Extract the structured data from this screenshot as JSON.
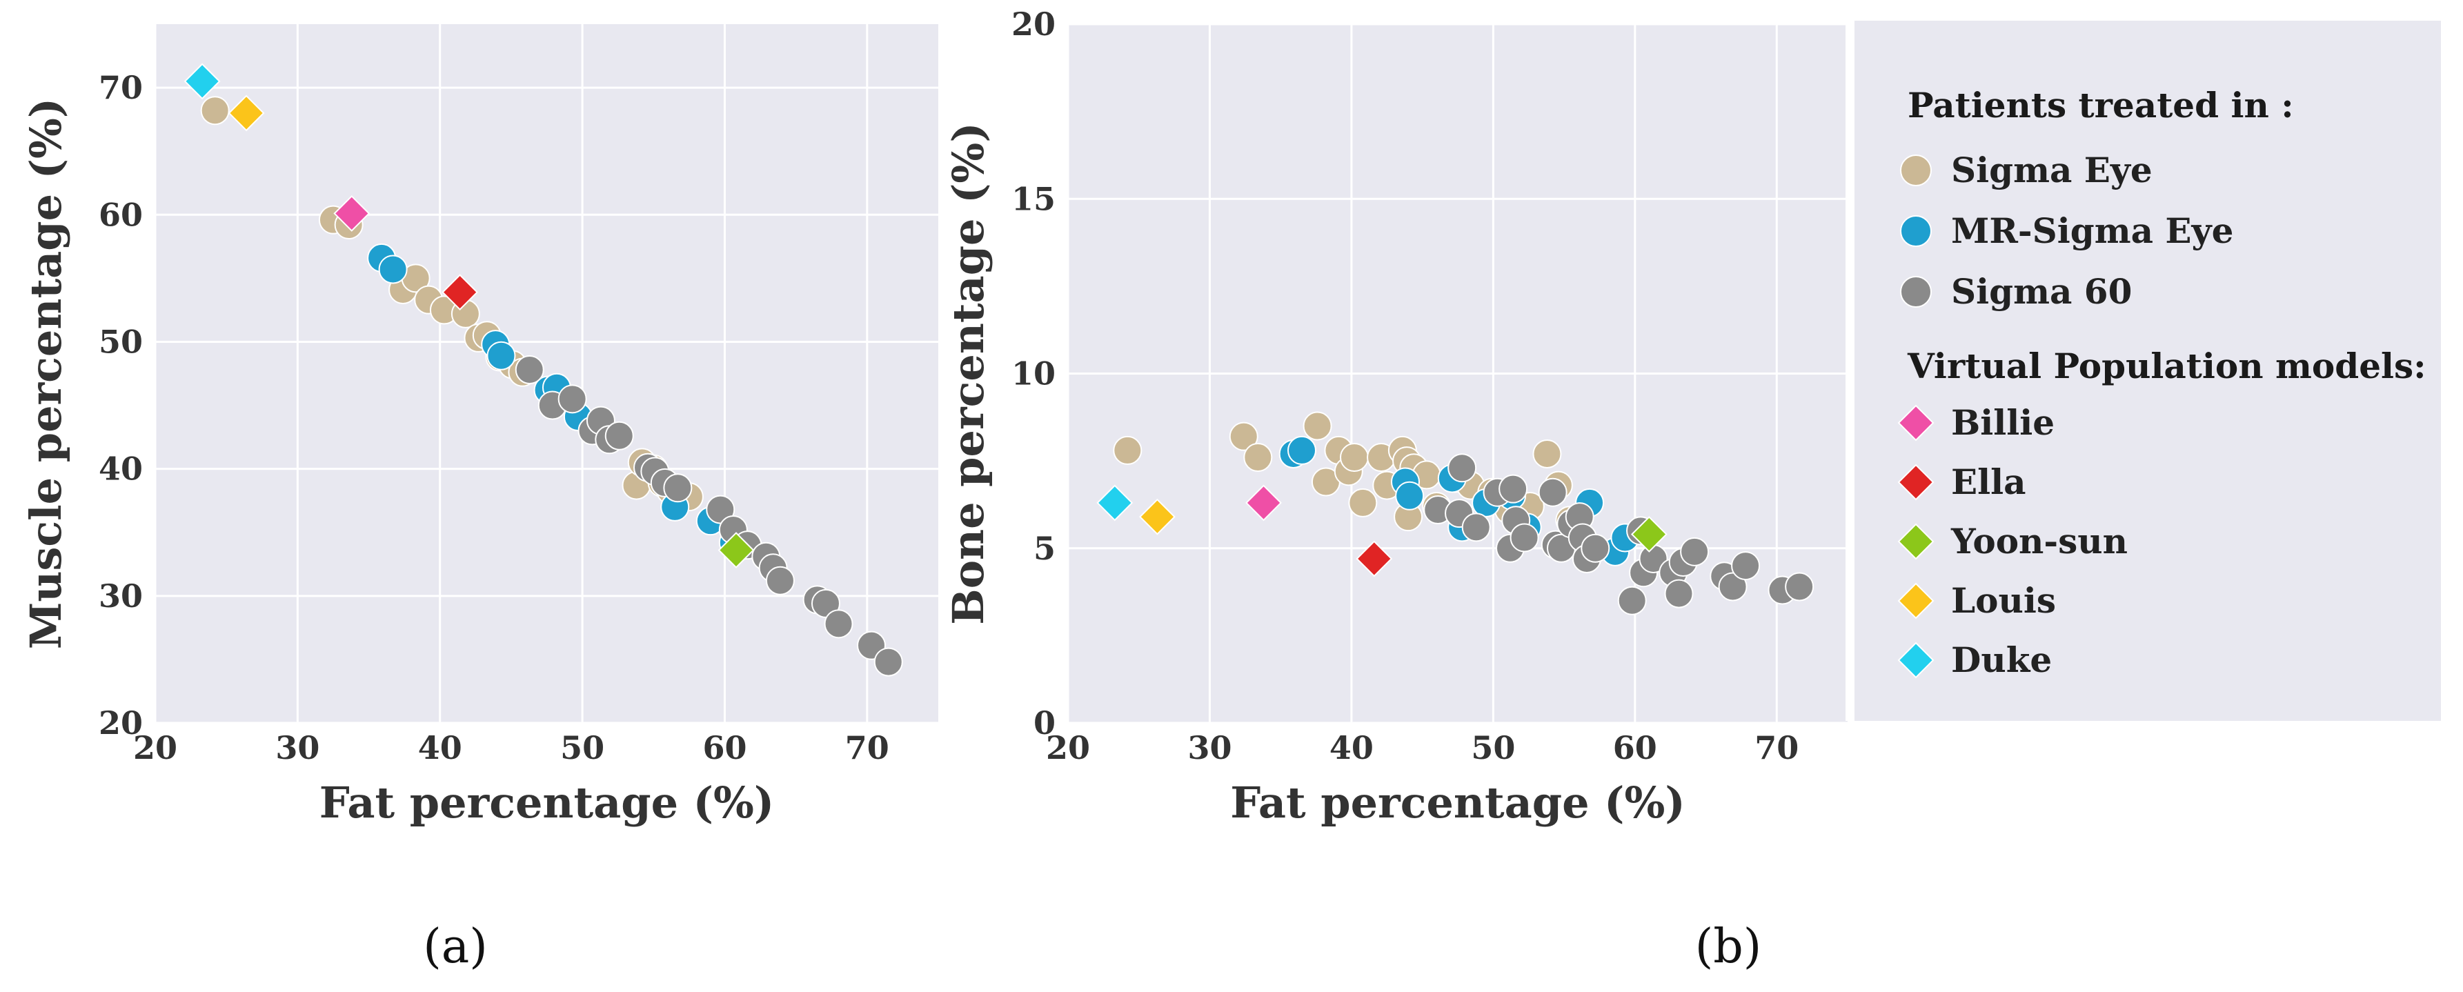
{
  "colors": {
    "sigma_eye": "#cbb895",
    "mr_sigma_eye": "#1f9fcf",
    "sigma_60": "#8a8a8a",
    "Billie": "#ef4fa6",
    "Ella": "#e02424",
    "Yoon-sun": "#8cc71a",
    "Louis": "#fbc41a",
    "Duke": "#22d0ee",
    "plot_bg": "#e8e8f0"
  },
  "legend": {
    "patients_title": "Patients treated in :",
    "patients": [
      {
        "key": "sigma_eye",
        "label": "Sigma Eye"
      },
      {
        "key": "mr_sigma_eye",
        "label": "MR-Sigma Eye"
      },
      {
        "key": "sigma_60",
        "label": "Sigma 60"
      }
    ],
    "models_title": "Virtual Population models:",
    "models": [
      {
        "key": "Billie",
        "label": "Billie"
      },
      {
        "key": "Ella",
        "label": "Ella"
      },
      {
        "key": "Yoon-sun",
        "label": "Yoon-sun"
      },
      {
        "key": "Louis",
        "label": "Louis"
      },
      {
        "key": "Duke",
        "label": "Duke"
      }
    ]
  },
  "chart_data": [
    {
      "id": "a",
      "type": "scatter",
      "panel_label": "(a)",
      "xlabel": "Fat percentage (%)",
      "ylabel": "Muscle percentage (%)",
      "xlim": [
        20,
        75
      ],
      "ylim": [
        20,
        75
      ],
      "xticks": [
        20,
        30,
        40,
        50,
        60,
        70
      ],
      "yticks": [
        20,
        30,
        40,
        50,
        60,
        70
      ],
      "grid": true,
      "series": [
        {
          "key": "sigma_eye",
          "name": "Sigma Eye",
          "marker": "circle",
          "points": [
            [
              24.2,
              68.2
            ],
            [
              32.5,
              59.6
            ],
            [
              33.6,
              59.2
            ],
            [
              37.4,
              54.1
            ],
            [
              38.3,
              55.0
            ],
            [
              39.2,
              53.3
            ],
            [
              40.3,
              52.5
            ],
            [
              41.8,
              52.2
            ],
            [
              42.7,
              50.3
            ],
            [
              43.3,
              50.5
            ],
            [
              44.2,
              48.8
            ],
            [
              45.1,
              48.2
            ],
            [
              45.8,
              47.6
            ],
            [
              53.8,
              38.7
            ],
            [
              54.2,
              40.5
            ],
            [
              55.0,
              40.0
            ],
            [
              55.6,
              38.9
            ],
            [
              56.2,
              38.3
            ],
            [
              57.5,
              37.8
            ]
          ]
        },
        {
          "key": "mr_sigma_eye",
          "name": "MR-Sigma Eye",
          "marker": "circle",
          "points": [
            [
              35.9,
              56.6
            ],
            [
              36.7,
              55.7
            ],
            [
              43.9,
              49.8
            ],
            [
              44.3,
              48.9
            ],
            [
              47.6,
              46.2
            ],
            [
              48.2,
              46.4
            ],
            [
              49.7,
              44.1
            ],
            [
              56.5,
              37.0
            ],
            [
              59.0,
              35.9
            ],
            [
              60.6,
              34.2
            ]
          ]
        },
        {
          "key": "sigma_60",
          "name": "Sigma 60",
          "marker": "circle",
          "points": [
            [
              46.3,
              47.8
            ],
            [
              47.9,
              45.0
            ],
            [
              49.3,
              45.5
            ],
            [
              50.7,
              43.0
            ],
            [
              51.3,
              43.8
            ],
            [
              51.9,
              42.3
            ],
            [
              52.6,
              42.6
            ],
            [
              54.6,
              40.1
            ],
            [
              55.1,
              39.8
            ],
            [
              55.8,
              38.9
            ],
            [
              56.7,
              38.5
            ],
            [
              59.7,
              36.8
            ],
            [
              60.6,
              35.2
            ],
            [
              61.6,
              34.0
            ],
            [
              62.9,
              33.1
            ],
            [
              63.4,
              32.2
            ],
            [
              63.9,
              31.2
            ],
            [
              66.5,
              29.7
            ],
            [
              67.1,
              29.4
            ],
            [
              68.0,
              27.8
            ],
            [
              70.3,
              26.1
            ],
            [
              71.5,
              24.8
            ]
          ]
        },
        {
          "key": "Billie",
          "name": "Billie",
          "marker": "diamond",
          "points": [
            [
              33.8,
              60.1
            ]
          ]
        },
        {
          "key": "Ella",
          "name": "Ella",
          "marker": "diamond",
          "points": [
            [
              41.4,
              53.9
            ]
          ]
        },
        {
          "key": "Yoon-sun",
          "name": "Yoon-sun",
          "marker": "diamond",
          "points": [
            [
              60.8,
              33.6
            ]
          ]
        },
        {
          "key": "Louis",
          "name": "Louis",
          "marker": "diamond",
          "points": [
            [
              26.4,
              68.0
            ]
          ]
        },
        {
          "key": "Duke",
          "name": "Duke",
          "marker": "diamond",
          "points": [
            [
              23.3,
              70.5
            ]
          ]
        }
      ]
    },
    {
      "id": "b",
      "type": "scatter",
      "panel_label": "(b)",
      "xlabel": "Fat percentage (%)",
      "ylabel": "Bone percentage (%)",
      "xlim": [
        20,
        75
      ],
      "ylim": [
        0,
        20
      ],
      "xticks": [
        20,
        30,
        40,
        50,
        60,
        70
      ],
      "yticks": [
        0,
        5,
        10,
        15,
        20
      ],
      "grid": true,
      "series": [
        {
          "key": "sigma_eye",
          "name": "Sigma Eye",
          "marker": "circle",
          "points": [
            [
              24.2,
              7.8
            ],
            [
              32.4,
              8.2
            ],
            [
              33.4,
              7.6
            ],
            [
              37.6,
              8.5
            ],
            [
              38.2,
              6.9
            ],
            [
              39.1,
              7.8
            ],
            [
              39.8,
              7.2
            ],
            [
              40.2,
              7.6
            ],
            [
              40.8,
              6.3
            ],
            [
              42.1,
              7.6
            ],
            [
              42.5,
              6.8
            ],
            [
              43.6,
              7.8
            ],
            [
              43.9,
              7.5
            ],
            [
              44.0,
              5.9
            ],
            [
              44.4,
              7.3
            ],
            [
              45.3,
              7.1
            ],
            [
              46.0,
              6.2
            ],
            [
              47.3,
              7.0
            ],
            [
              48.4,
              6.8
            ],
            [
              49.9,
              6.6
            ],
            [
              51.1,
              6.1
            ],
            [
              52.6,
              6.2
            ],
            [
              53.8,
              7.7
            ],
            [
              54.6,
              6.8
            ],
            [
              55.4,
              5.8
            ]
          ]
        },
        {
          "key": "mr_sigma_eye",
          "name": "MR-Sigma Eye",
          "marker": "circle",
          "points": [
            [
              35.9,
              7.7
            ],
            [
              36.5,
              7.8
            ],
            [
              43.8,
              6.9
            ],
            [
              44.1,
              6.5
            ],
            [
              47.1,
              7.0
            ],
            [
              47.8,
              5.6
            ],
            [
              49.5,
              6.3
            ],
            [
              51.3,
              6.5
            ],
            [
              52.4,
              5.6
            ],
            [
              56.8,
              6.3
            ],
            [
              58.6,
              4.9
            ],
            [
              59.3,
              5.3
            ]
          ]
        },
        {
          "key": "sigma_60",
          "name": "Sigma 60",
          "marker": "circle",
          "points": [
            [
              46.1,
              6.1
            ],
            [
              47.6,
              6.0
            ],
            [
              47.8,
              7.3
            ],
            [
              48.8,
              5.6
            ],
            [
              50.3,
              6.6
            ],
            [
              51.2,
              5.0
            ],
            [
              51.4,
              6.7
            ],
            [
              51.6,
              5.8
            ],
            [
              52.2,
              5.3
            ],
            [
              54.2,
              6.6
            ],
            [
              54.4,
              5.1
            ],
            [
              54.8,
              5.0
            ],
            [
              55.5,
              5.7
            ],
            [
              56.1,
              5.9
            ],
            [
              56.3,
              5.3
            ],
            [
              56.6,
              4.7
            ],
            [
              57.2,
              5.0
            ],
            [
              59.8,
              3.5
            ],
            [
              60.4,
              5.5
            ],
            [
              60.6,
              4.3
            ],
            [
              61.3,
              4.7
            ],
            [
              62.7,
              4.3
            ],
            [
              63.1,
              3.7
            ],
            [
              63.4,
              4.6
            ],
            [
              64.2,
              4.9
            ],
            [
              66.3,
              4.2
            ],
            [
              66.9,
              3.9
            ],
            [
              67.8,
              4.5
            ],
            [
              70.4,
              3.8
            ],
            [
              71.6,
              3.9
            ]
          ]
        },
        {
          "key": "Billie",
          "name": "Billie",
          "marker": "diamond",
          "points": [
            [
              33.8,
              6.3
            ]
          ]
        },
        {
          "key": "Ella",
          "name": "Ella",
          "marker": "diamond",
          "points": [
            [
              41.6,
              4.7
            ]
          ]
        },
        {
          "key": "Yoon-sun",
          "name": "Yoon-sun",
          "marker": "diamond",
          "points": [
            [
              61.0,
              5.4
            ]
          ]
        },
        {
          "key": "Louis",
          "name": "Louis",
          "marker": "diamond",
          "points": [
            [
              26.3,
              5.9
            ]
          ]
        },
        {
          "key": "Duke",
          "name": "Duke",
          "marker": "diamond",
          "points": [
            [
              23.3,
              6.3
            ]
          ]
        }
      ]
    }
  ]
}
